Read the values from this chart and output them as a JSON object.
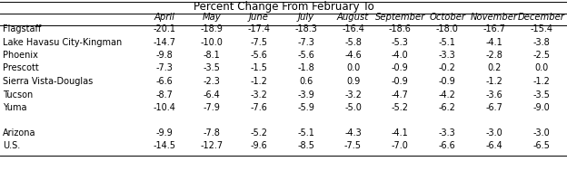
{
  "title": "Percent Change From February To",
  "columns": [
    "April",
    "May",
    "June",
    "July",
    "August",
    "September",
    "October",
    "November",
    "December"
  ],
  "metro_rows": [
    {
      "label": "Flagstaff",
      "values": [
        -20.1,
        -18.9,
        -17.4,
        -18.3,
        -16.4,
        -18.6,
        -18.0,
        -16.7,
        -15.4
      ]
    },
    {
      "label": "Lake Havasu City-Kingman",
      "values": [
        -14.7,
        -10.0,
        -7.5,
        -7.3,
        -5.8,
        -5.3,
        -5.1,
        -4.1,
        -3.8
      ]
    },
    {
      "label": "Phoenix",
      "values": [
        -9.8,
        -8.1,
        -5.6,
        -5.6,
        -4.6,
        -4.0,
        -3.3,
        -2.8,
        -2.5
      ]
    },
    {
      "label": "Prescott",
      "values": [
        -7.3,
        -3.5,
        -1.5,
        -1.8,
        0.0,
        -0.9,
        -0.2,
        0.2,
        0.0
      ]
    },
    {
      "label": "Sierra Vista-Douglas",
      "values": [
        -6.6,
        -2.3,
        -1.2,
        0.6,
        0.9,
        -0.9,
        -0.9,
        -1.2,
        -1.2
      ]
    },
    {
      "label": "Tucson",
      "values": [
        -8.7,
        -6.4,
        -3.2,
        -3.9,
        -3.2,
        -4.7,
        -4.2,
        -3.6,
        -3.5
      ]
    },
    {
      "label": "Yuma",
      "values": [
        -10.4,
        -7.9,
        -7.6,
        -5.9,
        -5.0,
        -5.2,
        -6.2,
        -6.7,
        -9.0
      ]
    }
  ],
  "summary_rows": [
    {
      "label": "Arizona",
      "values": [
        -9.9,
        -7.8,
        -5.2,
        -5.1,
        -4.3,
        -4.1,
        -3.3,
        -3.0,
        -3.0
      ]
    },
    {
      "label": "U.S.",
      "values": [
        -14.5,
        -12.7,
        -9.6,
        -8.5,
        -7.5,
        -7.0,
        -6.6,
        -6.4,
        -6.5
      ]
    }
  ],
  "bg_color": "#ffffff",
  "line_color": "#000000",
  "text_color": "#000000",
  "font_size": 7.0,
  "header_font_size": 7.2,
  "title_font_size": 8.5
}
